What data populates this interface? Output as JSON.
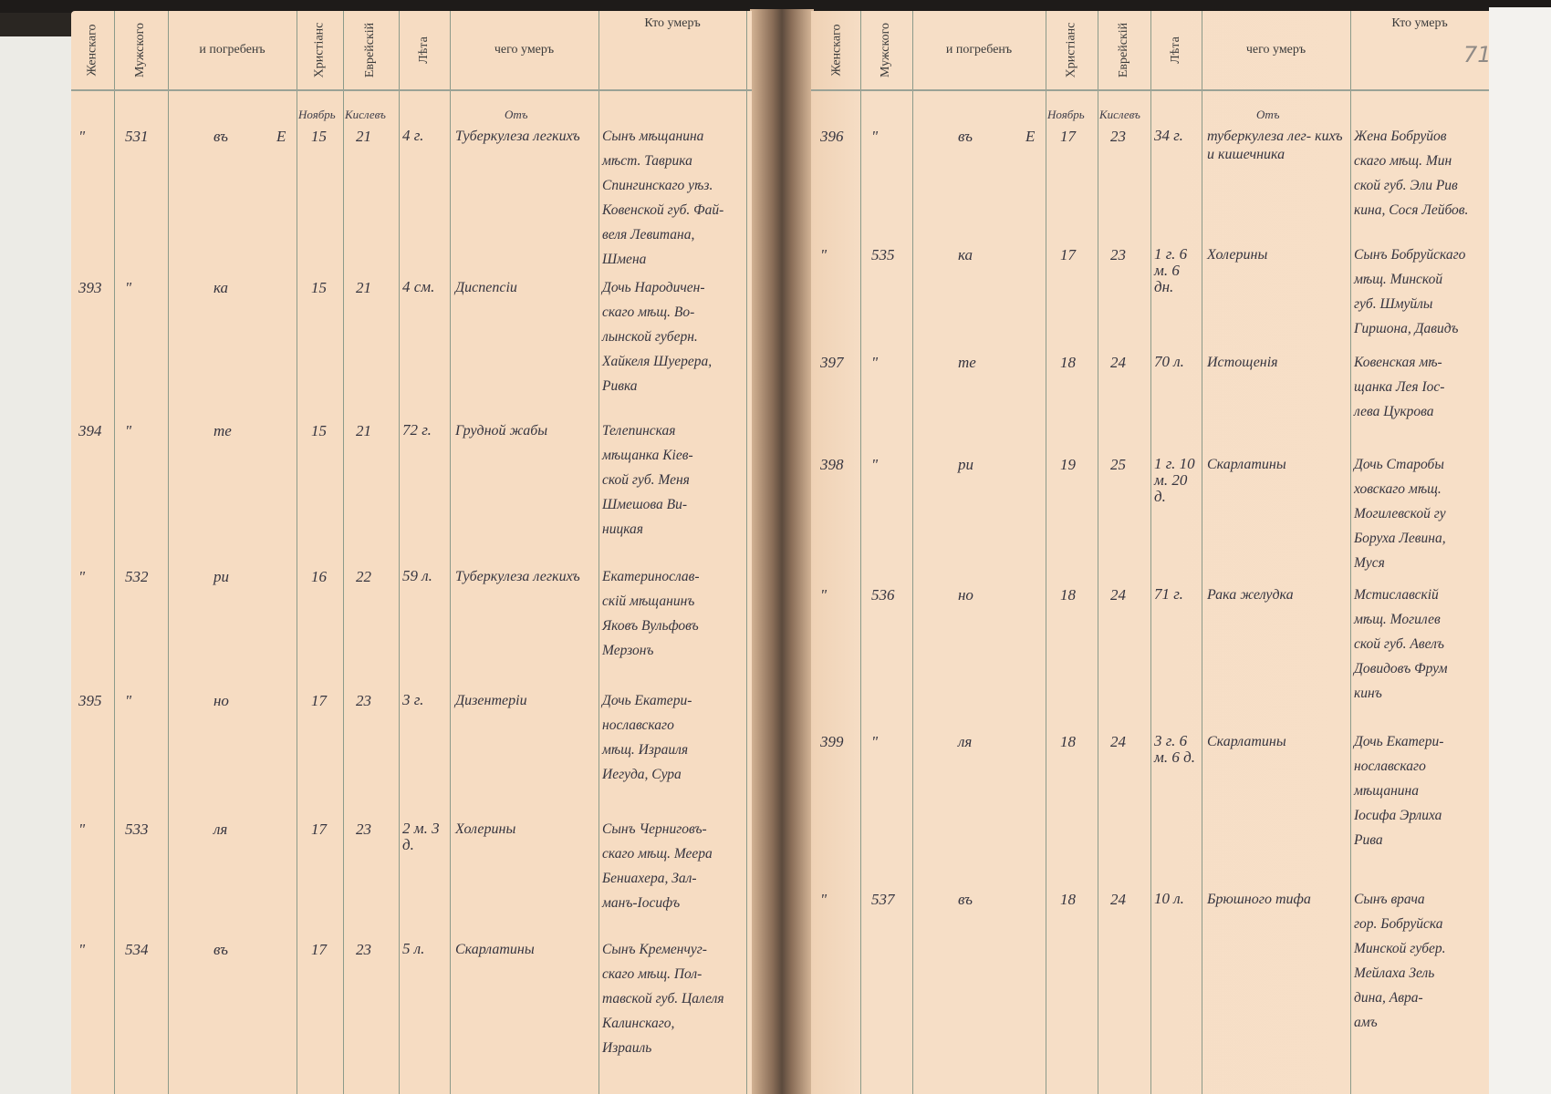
{
  "document": {
    "page_mark": "71",
    "headers": {
      "female": "Женскаго",
      "male": "Мужского",
      "buried": "и погребенъ",
      "christian": "Христiанс",
      "jewish": "Еврейскiй",
      "age": "Лѣта",
      "cause": "чего умеръ",
      "who": "Кто умеръ"
    },
    "subheaders": {
      "christian_month": "Ноябрь",
      "jewish_month": "Кислевъ",
      "cause_prefix": "Отъ"
    },
    "left_page": {
      "rows": [
        {
          "female": "\"",
          "male": "531",
          "buried": "въ",
          "buried_mark": "Е",
          "christian": "15",
          "jewish": "21",
          "age": "4 г.",
          "cause": "Туберкулеза легкихъ",
          "who": [
            "Сынъ мѣщанина",
            "мѣст. Таврика",
            "Спингинскаго уѣз.",
            "Ковенской губ. Фай-",
            "веля Левитана,",
            "Шмена"
          ]
        },
        {
          "female": "393",
          "male": "\"",
          "buried": "ка",
          "buried_mark": "",
          "christian": "15",
          "jewish": "21",
          "age": "4 см.",
          "cause": "Диспепсiи",
          "who": [
            "Дочь Народичен-",
            "скаго мѣщ. Во-",
            "лынской губерн.",
            "Хайкеля Шуерера,",
            "Ривка"
          ]
        },
        {
          "female": "394",
          "male": "\"",
          "buried": "те",
          "buried_mark": "",
          "christian": "15",
          "jewish": "21",
          "age": "72 г.",
          "cause": "Грудной жабы",
          "who": [
            "Телепинская",
            "мѣщанка Кiев-",
            "ской губ. Меня",
            "Шмешова Ви-",
            "ницкая"
          ]
        },
        {
          "female": "\"",
          "male": "532",
          "buried": "ри",
          "buried_mark": "",
          "christian": "16",
          "jewish": "22",
          "age": "59 л.",
          "cause": "Туберкулеза легкихъ",
          "who": [
            "Екатеринослав-",
            "скiй мѣщанинъ",
            "Яковъ Вульфовъ",
            "Мерзонъ"
          ]
        },
        {
          "female": "395",
          "male": "\"",
          "buried": "но",
          "buried_mark": "",
          "christian": "17",
          "jewish": "23",
          "age": "3 г.",
          "cause": "Дизентерiи",
          "who": [
            "Дочь Екатери-",
            "нославскаго",
            "мѣщ. Израиля",
            "Иегуда, Сура"
          ]
        },
        {
          "female": "\"",
          "male": "533",
          "buried": "ля",
          "buried_mark": "",
          "christian": "17",
          "jewish": "23",
          "age": "2 м. 3 д.",
          "cause": "Холерины",
          "who": [
            "Сынъ Черниговъ-",
            "скаго мѣщ. Меера",
            "Бениахера, Зал-",
            "манъ-Іосифъ"
          ]
        },
        {
          "female": "\"",
          "male": "534",
          "buried": "въ",
          "buried_mark": "",
          "christian": "17",
          "jewish": "23",
          "age": "5 л.",
          "cause": "Скарлатины",
          "who": [
            "Сынъ Кременчуг-",
            "скаго мѣщ. Пол-",
            "тавской губ. Цалеля",
            "Калинскаго,",
            "Израиль"
          ]
        }
      ]
    },
    "right_page": {
      "rows": [
        {
          "female": "396",
          "male": "\"",
          "buried": "въ",
          "buried_mark": "Е",
          "christian": "17",
          "jewish": "23",
          "age": "34 г.",
          "cause": "туберкулеза лег- кихъ и кишечника",
          "who": [
            "Жена Бобруйов",
            "скаго мѣщ. Мин",
            "ской губ. Эли Рив",
            "кина, Сося Лейбов."
          ]
        },
        {
          "female": "\"",
          "male": "535",
          "buried": "ка",
          "buried_mark": "",
          "christian": "17",
          "jewish": "23",
          "age": "1 г. 6 м. 6 дн.",
          "cause": "Холерины",
          "who": [
            "Сынъ Бобруйскаго",
            "мѣщ. Минской",
            "губ. Шмуйлы",
            "Гиршона, Давидъ"
          ]
        },
        {
          "female": "397",
          "male": "\"",
          "buried": "те",
          "buried_mark": "",
          "christian": "18",
          "jewish": "24",
          "age": "70 л.",
          "cause": "Истощенiя",
          "who": [
            "Ковенская мѣ-",
            "щанка Лея Іос-",
            "лева Цукрова"
          ]
        },
        {
          "female": "398",
          "male": "\"",
          "buried": "ри",
          "buried_mark": "",
          "christian": "19",
          "jewish": "25",
          "age": "1 г. 10 м. 20 д.",
          "cause": "Скарлатины",
          "who": [
            "Дочь Старобы",
            "ховскаго мѣщ.",
            "Могилевской гу",
            "Боруха Левина,",
            "Муся"
          ]
        },
        {
          "female": "\"",
          "male": "536",
          "buried": "но",
          "buried_mark": "",
          "christian": "18",
          "jewish": "24",
          "age": "71 г.",
          "cause": "Рака желудка",
          "who": [
            "Мстиславскiй",
            "мѣщ. Могилев",
            "ской губ. Авелъ",
            "Довидовъ Фрум",
            "кинъ"
          ]
        },
        {
          "female": "399",
          "male": "\"",
          "buried": "ля",
          "buried_mark": "",
          "christian": "18",
          "jewish": "24",
          "age": "3 г. 6 м. 6 д.",
          "cause": "Скарлатины",
          "who": [
            "Дочь Екатери-",
            "нославскаго",
            "мѣщанина",
            "Іосифа Эрлиха",
            "Рива"
          ]
        },
        {
          "female": "\"",
          "male": "537",
          "buried": "въ",
          "buried_mark": "",
          "christian": "18",
          "jewish": "24",
          "age": "10 л.",
          "cause": "Брюшного тифа",
          "who": [
            "Сынъ врача",
            "гор. Бобруйска",
            "Минской губер.",
            "Мейлаха Зель",
            "дина, Авра-",
            "амъ"
          ]
        }
      ]
    }
  }
}
